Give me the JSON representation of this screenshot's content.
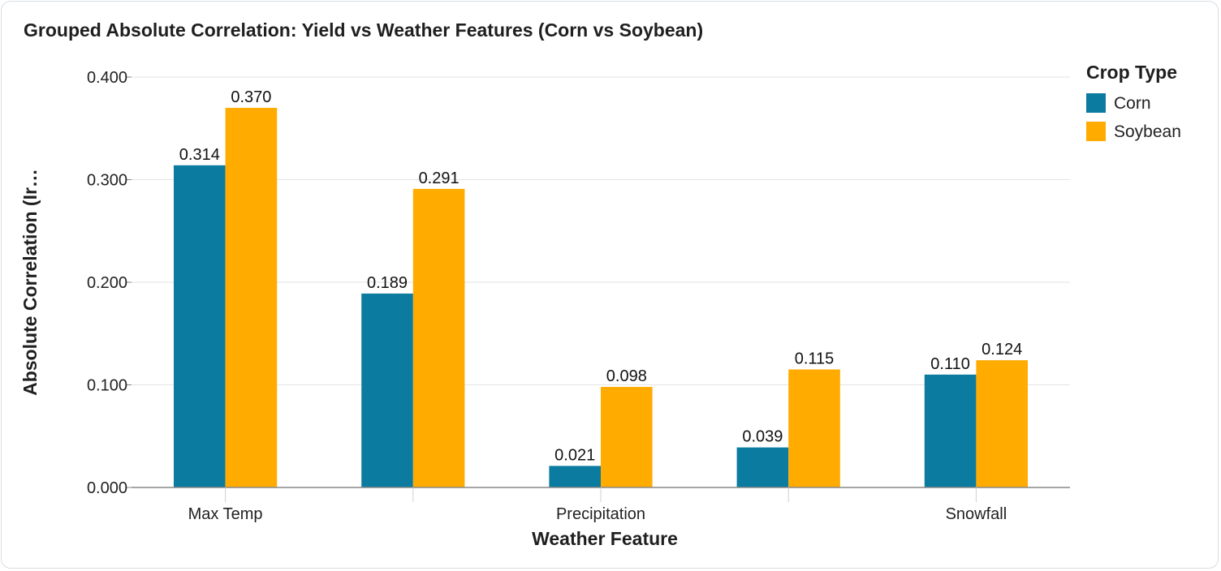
{
  "chart_data": {
    "type": "bar",
    "title": "Grouped Absolute Correlation: Yield vs Weather Features (Corn vs Soybean)",
    "xlabel": "Weather Feature",
    "ylabel": "Absolute Correlation (Ir…",
    "categories": [
      "Max Temp",
      "",
      "Precipitation",
      "",
      "Snowfall"
    ],
    "series": [
      {
        "name": "Corn",
        "color": "#0b7ba0",
        "values": [
          0.314,
          0.189,
          0.021,
          0.039,
          0.11
        ]
      },
      {
        "name": "Soybean",
        "color": "#ffab00",
        "values": [
          0.37,
          0.291,
          0.098,
          0.115,
          0.124
        ]
      }
    ],
    "value_labels": {
      "Corn": [
        "0.314",
        "0.189",
        "0.021",
        "0.039",
        "0.110"
      ],
      "Soybean": [
        "0.370",
        "0.291",
        "0.098",
        "0.115",
        "0.124"
      ]
    },
    "ylim": [
      0,
      0.4
    ],
    "yticks": [
      0,
      0.1,
      0.2,
      0.3,
      0.4
    ],
    "ytick_labels": [
      "0.000",
      "0.100",
      "0.200",
      "0.300",
      "0.400"
    ],
    "grid": true,
    "legend": {
      "title": "Crop Type",
      "position": "top-right"
    }
  }
}
